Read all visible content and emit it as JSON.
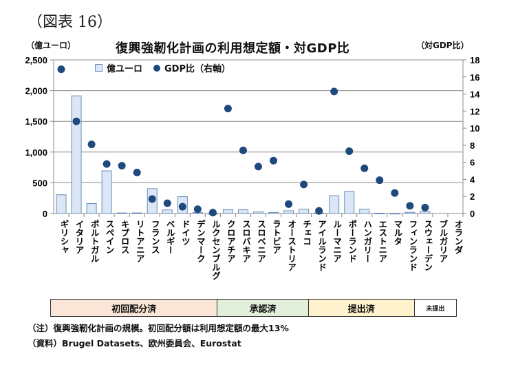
{
  "figure_label": "（図表 16）",
  "chart_data": {
    "type": "bar",
    "title": "復興強靭化計画の利用想定額・対GDP比",
    "ylabel": "（億ユーロ）",
    "y2label": "（対GDP比）",
    "ylim": [
      0,
      2500
    ],
    "y2lim": [
      0,
      18
    ],
    "yticks": [
      "0",
      "500",
      "1,000",
      "1,500",
      "2,000",
      "2,500"
    ],
    "y2ticks": [
      "0",
      "2",
      "4",
      "6",
      "8",
      "10",
      "12",
      "14",
      "16",
      "18"
    ],
    "grid": true,
    "legend_position": "top-left",
    "categories": [
      "ギリシャ",
      "イタリア",
      "ポルトガル",
      "スペイン",
      "キプロス",
      "リトアニア",
      "フランス",
      "ベルギー",
      "ドイツ",
      "デンマーク",
      "ルクセンブルグ",
      "クロアチア",
      "スロバキア",
      "スロベニア",
      "ラトビア",
      "オーストリア",
      "チェコ",
      "アイルランド",
      "ルーマニア",
      "ポーランド",
      "ハンガリー",
      "エストニア",
      "マルタ",
      "フィンランド",
      "スウェーデン",
      "ブルガリア",
      "オランダ"
    ],
    "series": [
      {
        "name": "億ユーロ",
        "type": "bar",
        "axis": "left",
        "color": "#dbe6f6",
        "edge": "#6a8fb8",
        "values": [
          305,
          1915,
          162,
          695,
          10,
          10,
          405,
          59,
          275,
          15,
          1,
          63,
          63,
          25,
          18,
          45,
          70,
          8,
          290,
          360,
          70,
          5,
          3,
          20,
          33,
          0,
          0
        ]
      },
      {
        "name": "GDP比（右軸）",
        "type": "scatter",
        "axis": "right",
        "color": "#1f497d",
        "values": [
          16.9,
          10.8,
          8.1,
          5.8,
          5.6,
          4.8,
          1.7,
          1.2,
          0.8,
          0.5,
          0.1,
          12.3,
          7.4,
          5.5,
          6.2,
          1.1,
          3.4,
          0.3,
          14.3,
          7.3,
          5.3,
          3.9,
          2.4,
          0.9,
          0.7,
          null,
          null
        ]
      }
    ]
  },
  "legend": {
    "bar_label": "億ユーロ",
    "dot_label": "GDP比（右軸）"
  },
  "status_groups": [
    {
      "label": "初回配分済",
      "count": 11,
      "color": "#fbe5d6"
    },
    {
      "label": "承認済",
      "count": 6,
      "color": "#e2efda"
    },
    {
      "label": "提出済",
      "count": 7,
      "color": "#fff2cc"
    },
    {
      "label": "未提出",
      "count": 3,
      "color": "#ffffff"
    }
  ],
  "notes": {
    "note": "（注）復興強靭化計画の規模。初回配分額は利用想定額の最大13%",
    "source": "（資料）Brugel Datasets、欧州委員会、Eurostat"
  }
}
